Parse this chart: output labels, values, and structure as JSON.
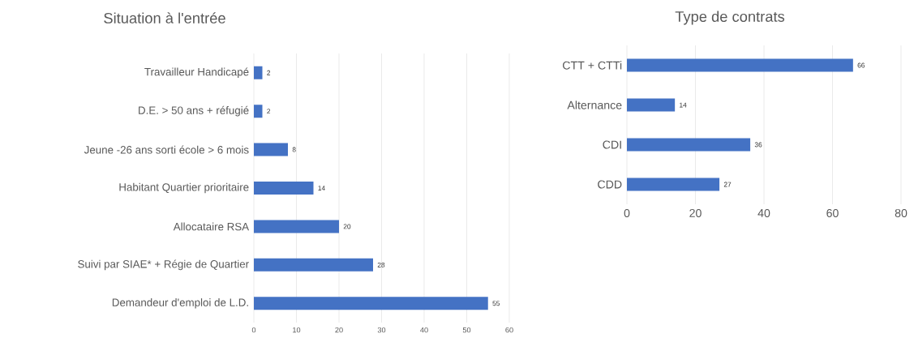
{
  "chart_data": [
    {
      "type": "bar",
      "orientation": "horizontal",
      "title": "Situation à l'entrée",
      "categories": [
        "Travailleur Handicapé",
        "D.E. > 50 ans + réfugié",
        "Jeune -26 ans sorti école > 6 mois",
        "Habitant Quartier prioritaire",
        "Allocataire RSA",
        "Suivi par SIAE* + Régie de Quartier",
        "Demandeur d'emploi de L.D."
      ],
      "values": [
        2,
        2,
        8,
        14,
        20,
        28,
        55
      ],
      "color": "#4472c4",
      "xlim": [
        0,
        60
      ],
      "xticks": [
        0,
        10,
        20,
        30,
        40,
        50,
        60
      ],
      "grid": "x",
      "data_labels": true
    },
    {
      "type": "bar",
      "orientation": "horizontal",
      "title": "Type de contrats",
      "categories": [
        "CTT + CTTi",
        "Alternance",
        "CDI",
        "CDD"
      ],
      "values": [
        66,
        14,
        36,
        27
      ],
      "color": "#4472c4",
      "xlim": [
        0,
        80
      ],
      "xticks": [
        0,
        20,
        40,
        60,
        80
      ],
      "grid": "x",
      "data_labels": true
    }
  ]
}
